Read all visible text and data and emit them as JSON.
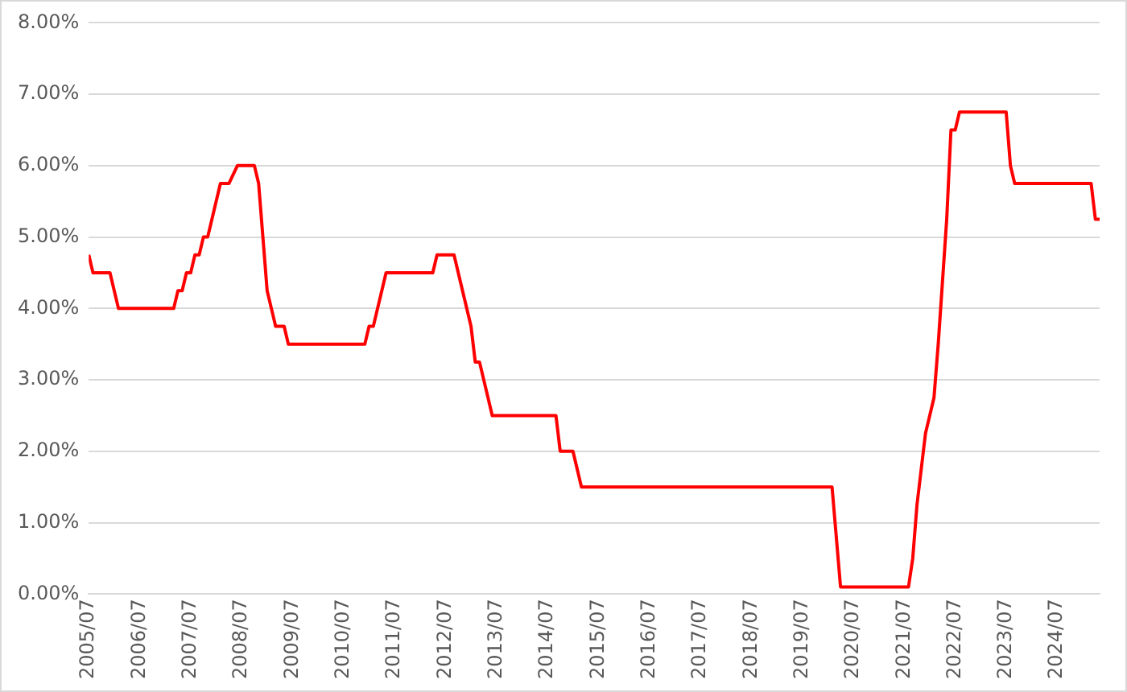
{
  "chart_data": {
    "type": "line",
    "x": [
      "2005-07",
      "2005-08",
      "2005-12",
      "2006-01",
      "2006-02",
      "2007-03",
      "2007-04",
      "2007-05",
      "2007-06",
      "2007-07",
      "2007-08",
      "2007-09",
      "2007-10",
      "2007-11",
      "2007-12",
      "2008-01",
      "2008-02",
      "2008-04",
      "2008-06",
      "2008-10",
      "2008-11",
      "2008-12",
      "2009-01",
      "2009-02",
      "2009-03",
      "2009-05",
      "2009-06",
      "2010-12",
      "2011-01",
      "2011-02",
      "2011-03",
      "2011-04",
      "2011-05",
      "2012-04",
      "2012-05",
      "2012-09",
      "2012-11",
      "2013-01",
      "2013-02",
      "2013-03",
      "2013-05",
      "2013-06",
      "2014-09",
      "2014-10",
      "2015-01",
      "2015-03",
      "2020-02",
      "2020-04",
      "2021-08",
      "2021-09",
      "2021-10",
      "2021-11",
      "2021-12",
      "2022-02",
      "2022-03",
      "2022-05",
      "2022-06",
      "2022-07",
      "2022-08",
      "2023-07",
      "2023-08",
      "2023-09",
      "2025-03",
      "2025-04",
      "2025-05"
    ],
    "series": [
      {
        "color": "#ff0000",
        "values": [
          4.75,
          4.5,
          4.5,
          4.25,
          4.0,
          4.0,
          4.25,
          4.25,
          4.5,
          4.5,
          4.75,
          4.75,
          5.0,
          5.0,
          5.25,
          5.5,
          5.75,
          5.75,
          6.0,
          6.0,
          5.75,
          5.0,
          4.25,
          4.0,
          3.75,
          3.75,
          3.5,
          3.5,
          3.75,
          3.75,
          4.0,
          4.25,
          4.5,
          4.5,
          4.75,
          4.75,
          4.25,
          3.75,
          3.25,
          3.25,
          2.75,
          2.5,
          2.5,
          2.0,
          2.0,
          1.5,
          1.5,
          0.1,
          0.1,
          0.5,
          1.25,
          1.75,
          2.25,
          2.75,
          3.5,
          5.25,
          6.5,
          6.5,
          6.75,
          6.75,
          6.0,
          5.75,
          5.75,
          5.25,
          5.25
        ]
      }
    ],
    "xlim": [
      "2005-07",
      "2025-05"
    ],
    "xticks": [
      {
        "value": "2005-07",
        "label": "2005/07"
      },
      {
        "value": "2006-07",
        "label": "2006/07"
      },
      {
        "value": "2007-07",
        "label": "2007/07"
      },
      {
        "value": "2008-07",
        "label": "2008/07"
      },
      {
        "value": "2009-07",
        "label": "2009/07"
      },
      {
        "value": "2010-07",
        "label": "2010/07"
      },
      {
        "value": "2011-07",
        "label": "2011/07"
      },
      {
        "value": "2012-07",
        "label": "2012/07"
      },
      {
        "value": "2013-07",
        "label": "2013/07"
      },
      {
        "value": "2014-07",
        "label": "2014/07"
      },
      {
        "value": "2015-07",
        "label": "2015/07"
      },
      {
        "value": "2016-07",
        "label": "2016/07"
      },
      {
        "value": "2017-07",
        "label": "2017/07"
      },
      {
        "value": "2018-07",
        "label": "2018/07"
      },
      {
        "value": "2019-07",
        "label": "2019/07"
      },
      {
        "value": "2020-07",
        "label": "2020/07"
      },
      {
        "value": "2021-07",
        "label": "2021/07"
      },
      {
        "value": "2022-07",
        "label": "2022/07"
      },
      {
        "value": "2023-07",
        "label": "2023/07"
      },
      {
        "value": "2024-07",
        "label": "2024/07"
      }
    ],
    "ylim": [
      0,
      8
    ],
    "yticks": [
      {
        "value": 0,
        "label": "0.00%"
      },
      {
        "value": 1,
        "label": "1.00%"
      },
      {
        "value": 2,
        "label": "2.00%"
      },
      {
        "value": 3,
        "label": "3.00%"
      },
      {
        "value": 4,
        "label": "4.00%"
      },
      {
        "value": 5,
        "label": "5.00%"
      },
      {
        "value": 6,
        "label": "6.00%"
      },
      {
        "value": 7,
        "label": "7.00%"
      },
      {
        "value": 8,
        "label": "8.00%"
      }
    ],
    "grid": "y",
    "marker": "none",
    "line_style": "solid"
  }
}
